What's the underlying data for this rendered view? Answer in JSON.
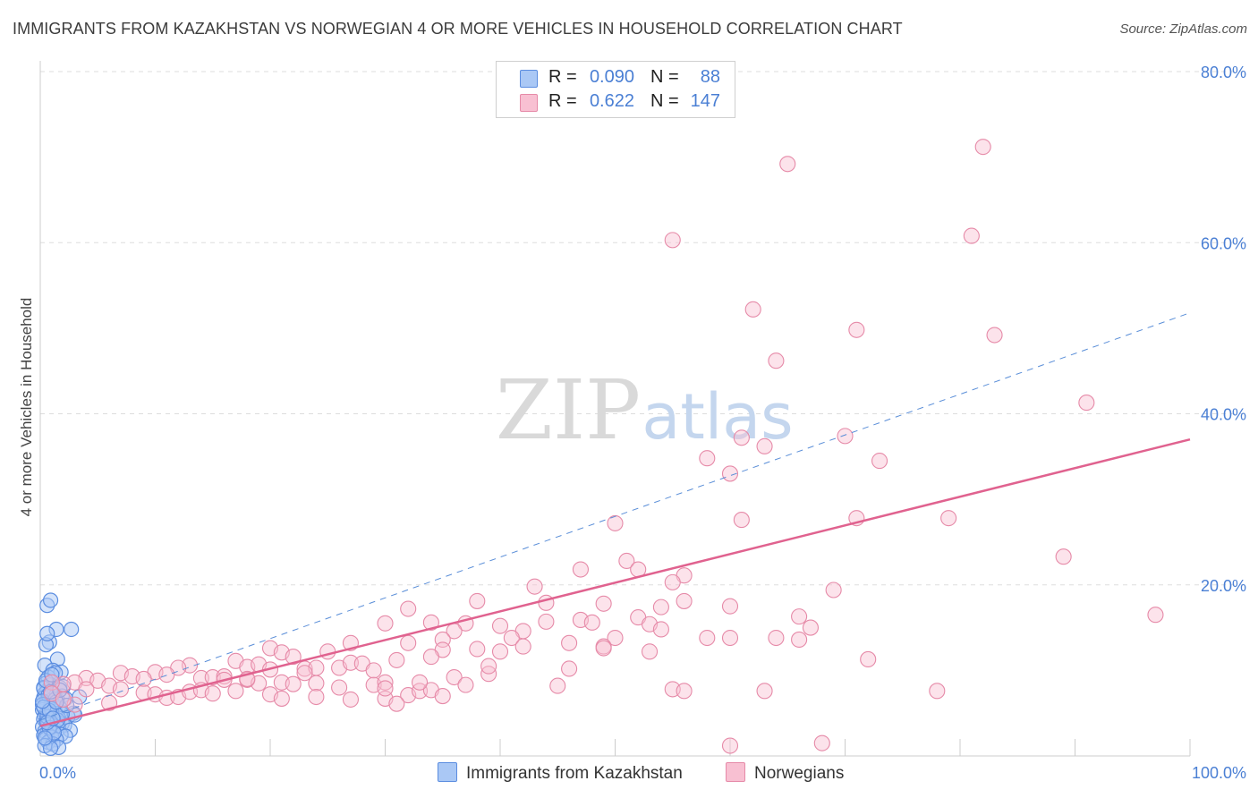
{
  "title": "IMMIGRANTS FROM KAZAKHSTAN VS NORWEGIAN 4 OR MORE VEHICLES IN HOUSEHOLD CORRELATION CHART",
  "source": "Source: ZipAtlas.com",
  "watermark": {
    "zip": "ZIP",
    "atlas": "atlas"
  },
  "colors": {
    "blue_fill": "#aac8f5",
    "blue_stroke": "#5b8de0",
    "blue_line": "#5a8ed8",
    "pink_fill": "#f8c0d2",
    "pink_stroke": "#e68aa8",
    "pink_line": "#e0628f",
    "tick_text": "#4a7fd4",
    "grid": "#dddddd"
  },
  "legend": {
    "rows": [
      {
        "r_label": "R =",
        "r_value": "0.090",
        "n_label": "N =",
        "n_value": "88",
        "color": "#aac8f5",
        "border": "#5b8de0"
      },
      {
        "r_label": "R =",
        "r_value": "0.622",
        "n_label": "N =",
        "n_value": "147",
        "color": "#f8c0d2",
        "border": "#e68aa8"
      }
    ]
  },
  "bottom_legend": [
    {
      "label": "Immigrants from Kazakhstan",
      "color": "#aac8f5",
      "border": "#5b8de0"
    },
    {
      "label": "Norwegians",
      "color": "#f8c0d2",
      "border": "#e68aa8"
    }
  ],
  "chart_data": {
    "type": "scatter",
    "title": "IMMIGRANTS FROM KAZAKHSTAN VS NORWEGIAN 4 OR MORE VEHICLES IN HOUSEHOLD CORRELATION CHART",
    "xlabel": "",
    "ylabel": "4 or more Vehicles in Household",
    "xlim": [
      0,
      100
    ],
    "ylim": [
      0,
      80
    ],
    "y_ticks": [
      20,
      40,
      60,
      80
    ],
    "y_tick_labels": [
      "20.0%",
      "40.0%",
      "60.0%",
      "80.0%"
    ],
    "x_tick_labels": {
      "left": "0.0%",
      "right": "100.0%"
    },
    "grid": true,
    "series": [
      {
        "name": "Immigrants from Kazakhstan",
        "r": 0.09,
        "n": 88,
        "trend": {
          "style": "dashed",
          "x": [
            0,
            100
          ],
          "y": [
            4.2,
            51.8
          ]
        },
        "points": [
          [
            0.6,
            17.6
          ],
          [
            0.9,
            18.2
          ],
          [
            1.4,
            14.8
          ],
          [
            2.7,
            14.8
          ],
          [
            0.8,
            13.3
          ],
          [
            0.5,
            13.0
          ],
          [
            0.6,
            14.3
          ],
          [
            1.5,
            11.3
          ],
          [
            0.4,
            10.6
          ],
          [
            1.1,
            10.0
          ],
          [
            1.8,
            9.8
          ],
          [
            0.7,
            9.2
          ],
          [
            1.3,
            9.7
          ],
          [
            0.5,
            8.5
          ],
          [
            0.3,
            8.0
          ],
          [
            0.9,
            8.3
          ],
          [
            1.7,
            8.0
          ],
          [
            2.0,
            8.1
          ],
          [
            0.6,
            7.6
          ],
          [
            0.4,
            7.3
          ],
          [
            1.2,
            7.2
          ],
          [
            1.9,
            7.0
          ],
          [
            0.8,
            6.9
          ],
          [
            0.3,
            6.8
          ],
          [
            1.5,
            6.5
          ],
          [
            2.2,
            6.7
          ],
          [
            3.4,
            6.9
          ],
          [
            0.5,
            6.2
          ],
          [
            1.1,
            6.0
          ],
          [
            0.9,
            5.8
          ],
          [
            1.7,
            5.6
          ],
          [
            0.2,
            5.4
          ],
          [
            1.3,
            5.2
          ],
          [
            2.9,
            5.0
          ],
          [
            0.6,
            5.1
          ],
          [
            1.0,
            4.9
          ],
          [
            0.4,
            4.7
          ],
          [
            2.4,
            4.6
          ],
          [
            1.6,
            4.4
          ],
          [
            0.3,
            4.3
          ],
          [
            0.9,
            4.1
          ],
          [
            3.0,
            4.8
          ],
          [
            0.5,
            4.0
          ],
          [
            1.4,
            3.9
          ],
          [
            1.9,
            3.8
          ],
          [
            0.7,
            3.7
          ],
          [
            1.1,
            3.5
          ],
          [
            2.1,
            3.6
          ],
          [
            0.2,
            3.4
          ],
          [
            1.6,
            3.2
          ],
          [
            0.8,
            3.1
          ],
          [
            2.6,
            3.0
          ],
          [
            0.4,
            2.9
          ],
          [
            1.2,
            2.8
          ],
          [
            0.6,
            2.6
          ],
          [
            1.8,
            2.5
          ],
          [
            0.3,
            2.4
          ],
          [
            2.2,
            2.3
          ],
          [
            1.0,
            2.2
          ],
          [
            0.5,
            2.0
          ],
          [
            1.4,
            1.9
          ],
          [
            0.7,
            1.6
          ],
          [
            1.1,
            1.4
          ],
          [
            0.4,
            1.2
          ],
          [
            1.6,
            1.0
          ],
          [
            0.9,
            0.9
          ],
          [
            0.3,
            7.9
          ],
          [
            0.7,
            7.1
          ],
          [
            1.3,
            6.6
          ],
          [
            0.2,
            6.0
          ],
          [
            1.0,
            5.5
          ],
          [
            0.6,
            4.6
          ],
          [
            1.5,
            4.2
          ],
          [
            0.8,
            3.3
          ],
          [
            1.2,
            2.7
          ],
          [
            0.4,
            2.1
          ],
          [
            1.9,
            4.9
          ],
          [
            2.3,
            5.9
          ],
          [
            0.5,
            8.8
          ],
          [
            1.0,
            9.5
          ],
          [
            0.3,
            5.7
          ],
          [
            0.8,
            5.3
          ],
          [
            1.4,
            6.3
          ],
          [
            0.6,
            3.9
          ],
          [
            1.1,
            4.4
          ],
          [
            0.2,
            6.4
          ],
          [
            0.9,
            7.5
          ],
          [
            1.7,
            7.7
          ]
        ]
      },
      {
        "name": "Norwegians",
        "r": 0.622,
        "n": 147,
        "trend": {
          "style": "solid",
          "x": [
            0,
            100
          ],
          "y": [
            3.5,
            37.0
          ]
        },
        "points": [
          [
            82,
            71.2
          ],
          [
            65,
            69.2
          ],
          [
            55,
            60.3
          ],
          [
            81,
            60.8
          ],
          [
            62,
            52.2
          ],
          [
            71,
            49.8
          ],
          [
            83,
            49.2
          ],
          [
            64,
            46.2
          ],
          [
            91,
            41.3
          ],
          [
            70,
            37.4
          ],
          [
            61,
            37.2
          ],
          [
            63,
            36.2
          ],
          [
            58,
            34.8
          ],
          [
            73,
            34.5
          ],
          [
            60,
            33.0
          ],
          [
            50,
            27.2
          ],
          [
            61,
            27.6
          ],
          [
            71,
            27.8
          ],
          [
            79,
            27.8
          ],
          [
            89,
            23.3
          ],
          [
            51,
            22.8
          ],
          [
            52,
            21.8
          ],
          [
            47,
            21.8
          ],
          [
            56,
            21.1
          ],
          [
            55,
            20.3
          ],
          [
            43,
            19.8
          ],
          [
            69,
            19.4
          ],
          [
            44,
            17.9
          ],
          [
            38,
            18.1
          ],
          [
            49,
            17.8
          ],
          [
            56,
            18.1
          ],
          [
            60,
            17.5
          ],
          [
            54,
            17.4
          ],
          [
            32,
            17.2
          ],
          [
            52,
            16.2
          ],
          [
            66,
            16.3
          ],
          [
            97,
            16.5
          ],
          [
            30,
            15.5
          ],
          [
            34,
            15.6
          ],
          [
            37,
            15.5
          ],
          [
            40,
            15.2
          ],
          [
            44,
            15.7
          ],
          [
            47,
            15.9
          ],
          [
            48,
            15.6
          ],
          [
            53,
            15.4
          ],
          [
            54,
            14.8
          ],
          [
            67,
            15.0
          ],
          [
            36,
            14.6
          ],
          [
            42,
            14.6
          ],
          [
            35,
            13.6
          ],
          [
            41,
            13.8
          ],
          [
            50,
            13.8
          ],
          [
            58,
            13.8
          ],
          [
            60,
            13.8
          ],
          [
            64,
            13.8
          ],
          [
            66,
            13.6
          ],
          [
            32,
            13.2
          ],
          [
            27,
            13.2
          ],
          [
            20,
            12.6
          ],
          [
            21,
            12.1
          ],
          [
            25,
            12.2
          ],
          [
            40,
            12.2
          ],
          [
            38,
            12.5
          ],
          [
            35,
            12.4
          ],
          [
            42,
            12.8
          ],
          [
            46,
            13.2
          ],
          [
            53,
            12.2
          ],
          [
            49,
            12.8
          ],
          [
            34,
            11.6
          ],
          [
            31,
            11.2
          ],
          [
            22,
            11.6
          ],
          [
            17,
            11.1
          ],
          [
            13,
            10.6
          ],
          [
            18,
            10.4
          ],
          [
            19,
            10.7
          ],
          [
            20,
            10.1
          ],
          [
            23,
            10.2
          ],
          [
            24,
            10.3
          ],
          [
            26,
            10.3
          ],
          [
            27,
            10.9
          ],
          [
            28,
            10.8
          ],
          [
            29,
            10.0
          ],
          [
            12,
            10.3
          ],
          [
            10,
            9.8
          ],
          [
            7,
            9.7
          ],
          [
            8,
            9.3
          ],
          [
            9,
            9.0
          ],
          [
            11,
            9.5
          ],
          [
            14,
            9.1
          ],
          [
            15,
            9.2
          ],
          [
            16,
            9.3
          ],
          [
            16,
            8.9
          ],
          [
            18,
            8.9
          ],
          [
            19,
            8.5
          ],
          [
            21,
            8.6
          ],
          [
            22,
            8.4
          ],
          [
            24,
            8.5
          ],
          [
            26,
            8.0
          ],
          [
            29,
            8.3
          ],
          [
            30,
            8.6
          ],
          [
            36,
            9.2
          ],
          [
            39,
            9.6
          ],
          [
            46,
            10.2
          ],
          [
            49,
            12.6
          ],
          [
            72,
            11.3
          ],
          [
            55,
            7.8
          ],
          [
            56,
            7.6
          ],
          [
            63,
            7.6
          ],
          [
            78,
            7.6
          ],
          [
            4,
            9.1
          ],
          [
            5,
            8.8
          ],
          [
            3,
            8.6
          ],
          [
            6,
            8.2
          ],
          [
            2,
            8.4
          ],
          [
            1,
            8.6
          ],
          [
            4,
            7.8
          ],
          [
            7,
            7.8
          ],
          [
            9,
            7.4
          ],
          [
            10,
            7.2
          ],
          [
            11,
            6.8
          ],
          [
            12,
            6.9
          ],
          [
            13,
            7.5
          ],
          [
            14,
            7.7
          ],
          [
            15,
            7.3
          ],
          [
            17,
            7.6
          ],
          [
            20,
            7.2
          ],
          [
            24,
            6.9
          ],
          [
            27,
            6.6
          ],
          [
            30,
            6.7
          ],
          [
            32,
            7.1
          ],
          [
            33,
            7.6
          ],
          [
            34,
            7.7
          ],
          [
            35,
            7.0
          ],
          [
            37,
            8.3
          ],
          [
            39,
            10.5
          ],
          [
            30,
            7.9
          ],
          [
            6,
            6.2
          ],
          [
            3,
            6.0
          ],
          [
            1,
            7.3
          ],
          [
            2,
            6.6
          ],
          [
            21,
            6.7
          ],
          [
            60,
            1.2
          ],
          [
            68,
            1.5
          ],
          [
            45,
            8.2
          ],
          [
            33,
            8.6
          ],
          [
            23,
            9.7
          ],
          [
            18,
            9.0
          ],
          [
            31,
            6.1
          ]
        ]
      }
    ]
  }
}
